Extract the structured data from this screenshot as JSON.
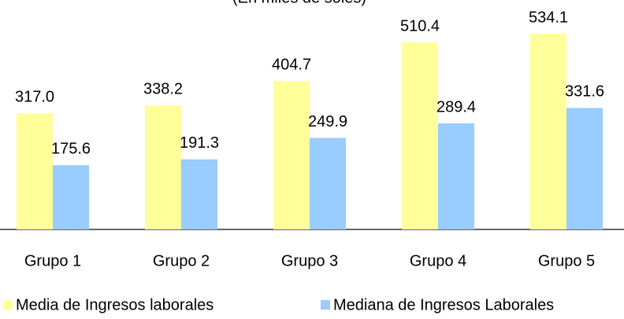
{
  "chart_data": {
    "type": "bar",
    "subtitle": "(En miles de soles)",
    "categories": [
      "Grupo 1",
      "Grupo 2",
      "Grupo 3",
      "Grupo 4",
      "Grupo 5"
    ],
    "series": [
      {
        "name": "Media de Ingresos laborales",
        "color": "#ffff99",
        "values": [
          317.0,
          338.2,
          404.7,
          510.4,
          534.1
        ],
        "value_labels": [
          "317.0",
          "338.2",
          "404.7",
          "510.4",
          "534.1"
        ]
      },
      {
        "name": "Mediana de Ingresos Laborales",
        "color": "#99ccff",
        "values": [
          175.6,
          191.3,
          249.9,
          289.4,
          331.6
        ],
        "value_labels": [
          "175.6",
          "191.3",
          "249.9",
          "289.4",
          "331.6"
        ]
      }
    ],
    "legend": "bottom"
  }
}
